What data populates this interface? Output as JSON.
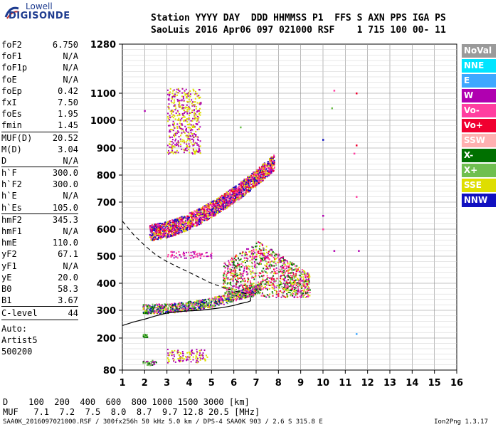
{
  "logo": {
    "line1": "Lowell",
    "line2": "DIGISONDE"
  },
  "header": {
    "line1": "Station YYYY DAY  DDD HHMMSS P1  FFS S AXN PPS IGA PS",
    "line2": "SaoLuis 2016 Apr06 097 021000 RSF    1 715 100 00- 11"
  },
  "params": [
    {
      "label": "foF2",
      "value": "6.750",
      "sep": false
    },
    {
      "label": "foF1",
      "value": "N/A",
      "sep": false
    },
    {
      "label": "foF1p",
      "value": "N/A",
      "sep": false
    },
    {
      "label": "foE",
      "value": "N/A",
      "sep": false
    },
    {
      "label": "foEp",
      "value": "0.42",
      "sep": false
    },
    {
      "label": "fxI",
      "value": "7.50",
      "sep": false
    },
    {
      "label": "foEs",
      "value": "1.95",
      "sep": false
    },
    {
      "label": "fmin",
      "value": "1.45",
      "sep": false
    },
    {
      "label": "MUF(D)",
      "value": "20.52",
      "sep": true
    },
    {
      "label": "M(D)",
      "value": "3.04",
      "sep": false
    },
    {
      "label": "D",
      "value": "N/A",
      "sep": false
    },
    {
      "label": "h`F",
      "value": "300.0",
      "sep": true
    },
    {
      "label": "h`F2",
      "value": "300.0",
      "sep": false
    },
    {
      "label": "h`E",
      "value": "N/A",
      "sep": false
    },
    {
      "label": "h`Es",
      "value": "105.0",
      "sep": false
    },
    {
      "label": "hmF2",
      "value": "345.3",
      "sep": true
    },
    {
      "label": "hmF1",
      "value": "N/A",
      "sep": false
    },
    {
      "label": "hmE",
      "value": "110.0",
      "sep": false
    },
    {
      "label": "yF2",
      "value": "67.1",
      "sep": false
    },
    {
      "label": "yF1",
      "value": "N/A",
      "sep": false
    },
    {
      "label": "yE",
      "value": "20.0",
      "sep": false
    },
    {
      "label": "B0",
      "value": "58.3",
      "sep": false
    },
    {
      "label": "B1",
      "value": "3.67",
      "sep": false
    }
  ],
  "clevel": {
    "label": "C-level",
    "value": "44"
  },
  "autoscaling": {
    "line1": "Auto:",
    "line2": "Artist5",
    "line3": "500200"
  },
  "legend": [
    {
      "label": "NoVal",
      "color": "#9a9a9a"
    },
    {
      "label": "NNE",
      "color": "#00e5ff"
    },
    {
      "label": "E",
      "color": "#3ea8ff"
    },
    {
      "label": "W",
      "color": "#b000b0"
    },
    {
      "label": "Vo-",
      "color": "#ff3ea0"
    },
    {
      "label": "Vo+",
      "color": "#f00030"
    },
    {
      "label": "SSW",
      "color": "#ffb0b0"
    },
    {
      "label": "X-",
      "color": "#007000"
    },
    {
      "label": "X+",
      "color": "#6fbf4f"
    },
    {
      "label": "SSE",
      "color": "#dede00"
    },
    {
      "label": "NNW",
      "color": "#1010c0"
    }
  ],
  "dtable": {
    "line1": "D    100  200  400  600  800 1000 1500 3000 [km]",
    "line2": "MUF   7.1  7.2  7.5  8.0  8.7  9.7 12.8 20.5 [MHz]"
  },
  "footer": {
    "left": "SAA0K_2016097021000.RSF / 300fx256h 50 kHz 5.0 km / DPS-4 SAA0K 903 / 2.6 S 315.8 E",
    "right": "Ion2Png 1.3.17"
  },
  "chart_data": {
    "type": "scatter",
    "x_ticks": [
      "1",
      "2",
      "3",
      "4",
      "5",
      "6",
      "7",
      "8",
      "9",
      "10",
      "11",
      "12",
      "13",
      "14",
      "15",
      "16"
    ],
    "y_ticks": [
      "80",
      "200",
      "300",
      "400",
      "500",
      "600",
      "700",
      "800",
      "900",
      "1000",
      "1100",
      "1280"
    ],
    "xlim": [
      1,
      16
    ],
    "ylim": [
      80,
      1280
    ],
    "y_scale": "nonlinear virtual height (ionogram)",
    "grid": true,
    "profile_solid": {
      "x": [
        1,
        1.5,
        2,
        2.5,
        3,
        3.5,
        4,
        4.5,
        5,
        5.5,
        6,
        6.3,
        6.6,
        6.75,
        6.75
      ],
      "y": [
        245,
        258,
        268,
        280,
        290,
        295,
        298,
        300,
        305,
        310,
        318,
        325,
        330,
        335,
        348
      ]
    },
    "profile_dashed": {
      "x": [
        1,
        1.5,
        2,
        2.5,
        3,
        3.5,
        4,
        4.5,
        5,
        5.5,
        6,
        6.5,
        6.75
      ],
      "y": [
        630,
        580,
        540,
        505,
        480,
        460,
        440,
        420,
        400,
        385,
        372,
        362,
        358
      ]
    },
    "echo_regions": [
      {
        "name": "F-trace",
        "x": [
          1.9,
          7.2
        ],
        "y": [
          290,
          420
        ],
        "colors": [
          "#dede00",
          "#b000b0",
          "#ff3ea0",
          "#007000",
          "#6fbf4f",
          "#1010c0"
        ]
      },
      {
        "name": "F-spread",
        "x": [
          5.5,
          9.4
        ],
        "y": [
          350,
          560
        ],
        "colors": [
          "#dede00",
          "#ff3ea0",
          "#f00030",
          "#007000",
          "#6fbf4f",
          "#b000b0"
        ]
      },
      {
        "name": "2F-trace",
        "x": [
          2.2,
          7.8
        ],
        "y": [
          580,
          880
        ],
        "colors": [
          "#dede00",
          "#b000b0",
          "#ff3ea0",
          "#f00030",
          "#1010c0"
        ]
      },
      {
        "name": "3F-trace",
        "x": [
          3.0,
          4.5
        ],
        "y": [
          880,
          1120
        ],
        "colors": [
          "#dede00",
          "#b000b0"
        ]
      },
      {
        "name": "3F-band",
        "x": [
          3.0,
          5.0
        ],
        "y": [
          495,
          520
        ],
        "colors": [
          "#b000b0",
          "#ff3ea0"
        ]
      },
      {
        "name": "Es-low",
        "x": [
          1.9,
          2.5
        ],
        "y": [
          100,
          120
        ],
        "colors": [
          "#007000",
          "#6fbf4f",
          "#b000b0"
        ]
      },
      {
        "name": "Es-mid",
        "x": [
          3.0,
          4.8
        ],
        "y": [
          110,
          160
        ],
        "colors": [
          "#b000b0",
          "#dede00"
        ]
      },
      {
        "name": "Es-210",
        "x": [
          1.9,
          2.1
        ],
        "y": [
          205,
          215
        ],
        "colors": [
          "#6fbf4f",
          "#007000"
        ]
      }
    ],
    "isolated_points": [
      {
        "x": 10.0,
        "y": 930,
        "color": "#1010c0"
      },
      {
        "x": 10.0,
        "y": 650,
        "color": "#b000b0"
      },
      {
        "x": 10.5,
        "y": 1110,
        "color": "#ff3ea0"
      },
      {
        "x": 10.4,
        "y": 1045,
        "color": "#6fbf4f"
      },
      {
        "x": 10.5,
        "y": 520,
        "color": "#b000b0"
      },
      {
        "x": 11.5,
        "y": 1100,
        "color": "#f00030"
      },
      {
        "x": 11.5,
        "y": 910,
        "color": "#f00030"
      },
      {
        "x": 11.4,
        "y": 880,
        "color": "#ff3ea0"
      },
      {
        "x": 11.5,
        "y": 720,
        "color": "#ff3ea0"
      },
      {
        "x": 11.6,
        "y": 520,
        "color": "#b000b0"
      },
      {
        "x": 11.5,
        "y": 215,
        "color": "#3ea8ff"
      },
      {
        "x": 10.0,
        "y": 600,
        "color": "#ff3ea0"
      },
      {
        "x": 2.0,
        "y": 1035,
        "color": "#b000b0"
      },
      {
        "x": 6.3,
        "y": 975,
        "color": "#6fbf4f"
      }
    ]
  }
}
